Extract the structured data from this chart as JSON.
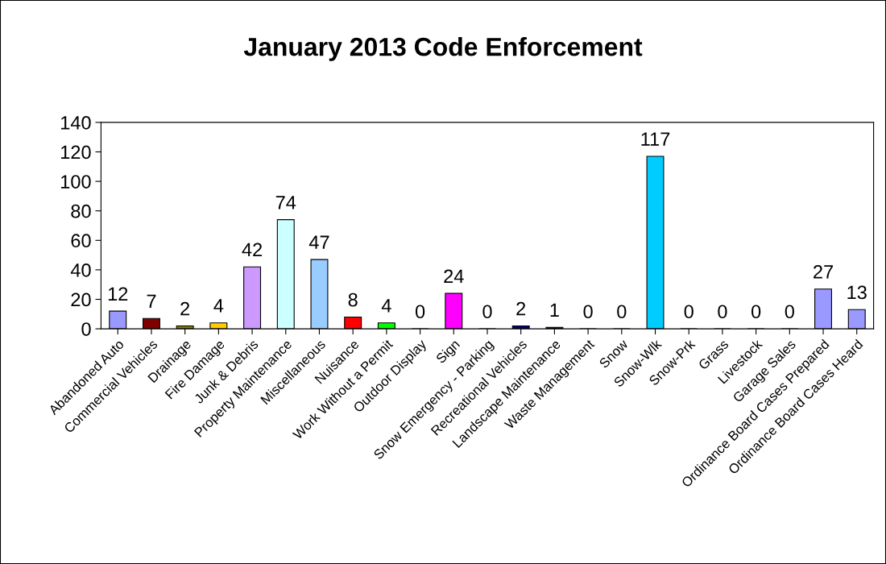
{
  "chart_data": {
    "type": "bar",
    "title": "January 2013 Code Enforcement",
    "categories": [
      "Abandoned Auto",
      "Commercial Vehicles",
      "Drainage",
      "Fire Damage",
      "Junk & Debris",
      "Property Maintenance",
      "Miscellaneous",
      "Nuisance",
      "Work Without a Permit",
      "Outdoor Display",
      "Sign",
      "Snow Emergency - Parking",
      "Recreational Vehicles",
      "Landscape Maintenance",
      "Waste Management",
      "Snow",
      "Snow-Wlk",
      "Snow-Prk",
      "Grass",
      "Livestock",
      "Garage Sales",
      "Ordinance Board Cases Prepared",
      "Ordinance Board Cases Heard"
    ],
    "values": [
      12,
      7,
      2,
      4,
      42,
      74,
      47,
      8,
      4,
      0,
      24,
      0,
      2,
      1,
      0,
      0,
      117,
      0,
      0,
      0,
      0,
      27,
      13
    ],
    "colors": [
      "#9999ff",
      "#800000",
      "#808000",
      "#ffcc00",
      "#cc99ff",
      "#ccffff",
      "#99ccff",
      "#ff0000",
      "#00ff00",
      "#9999ff",
      "#ff00ff",
      "#9999ff",
      "#000080",
      "#000000",
      "#9999ff",
      "#9999ff",
      "#00ccff",
      "#9999ff",
      "#9999ff",
      "#9999ff",
      "#9999ff",
      "#9999ff",
      "#9999ff"
    ],
    "ylim": [
      0,
      140
    ],
    "yticks": [
      0,
      20,
      40,
      60,
      80,
      100,
      120,
      140
    ],
    "data_labels": true,
    "grid": false,
    "legend": false
  }
}
